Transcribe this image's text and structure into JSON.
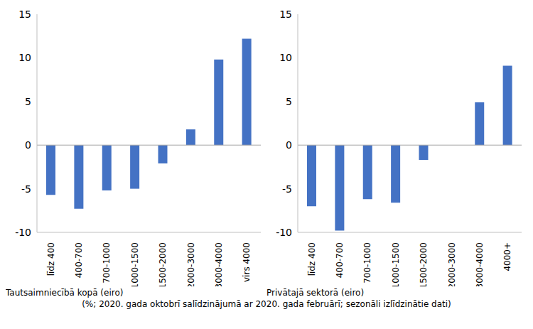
{
  "chart_data": [
    {
      "type": "bar",
      "x_label": "Tautsaimniecībā kopā (eiro)",
      "categories": [
        "līdz 400",
        "400-700",
        "700-1000",
        "1000-1500",
        "1500-2000",
        "2000-3000",
        "3000-4000",
        "virs 4000"
      ],
      "values": [
        -5.7,
        -7.3,
        -5.2,
        -5.0,
        -2.1,
        1.8,
        9.8,
        12.2
      ],
      "color": "#4472c4",
      "ylim": [
        -10,
        15
      ],
      "yticks": [
        -10,
        -5,
        0,
        5,
        10,
        15
      ],
      "grid": false
    },
    {
      "type": "bar",
      "x_label": "Privātajā sektorā (eiro)",
      "categories": [
        "līdz 400",
        "400-700",
        "700-1000",
        "1000-1500",
        "1500-2000",
        "2000-3000",
        "3000-4000",
        "4000+"
      ],
      "values": [
        -7.0,
        -9.8,
        -6.2,
        -6.6,
        -1.7,
        0,
        4.9,
        9.1
      ],
      "color": "#4472c4",
      "ylim": [
        -10,
        15
      ],
      "yticks": [
        -10,
        -5,
        0,
        5,
        10,
        15
      ],
      "grid": false
    }
  ],
  "note": "(%; 2020. gada oktobrī salīdzinājumā ar 2020. gada februārī; sezonāli izlīdzinātie dati)"
}
